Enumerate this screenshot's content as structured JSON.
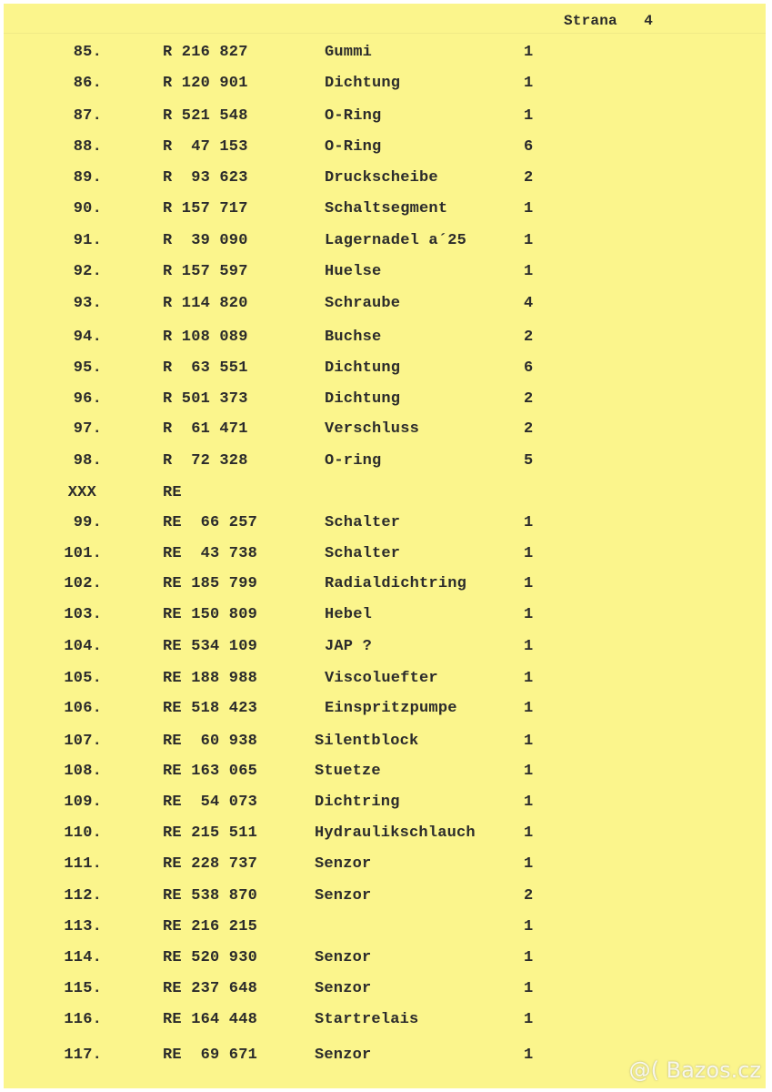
{
  "header": {
    "page_label": "Strana",
    "page_number": "4"
  },
  "rows": [
    {
      "no": "85.",
      "code": "R 216 827",
      "desc": "Gummi",
      "qty": "1"
    },
    {
      "no": "86.",
      "code": "R 120 901",
      "desc": "Dichtung",
      "qty": "1"
    },
    {
      "no": "87.",
      "code": "R 521 548",
      "desc": "O-Ring",
      "qty": "1"
    },
    {
      "no": "88.",
      "code": "R  47 153",
      "desc": "O-Ring",
      "qty": "6"
    },
    {
      "no": "89.",
      "code": "R  93 623",
      "desc": "Druckscheibe",
      "qty": "2"
    },
    {
      "no": "90.",
      "code": "R 157 717",
      "desc": "Schaltsegment",
      "qty": "1"
    },
    {
      "no": "91.",
      "code": "R  39 090",
      "desc": "Lagernadel a´25",
      "qty": "1"
    },
    {
      "no": "92.",
      "code": "R 157 597",
      "desc": "Huelse",
      "qty": "1"
    },
    {
      "no": "93.",
      "code": "R 114 820",
      "desc": "Schraube",
      "qty": "4"
    },
    {
      "no": "94.",
      "code": "R 108 089",
      "desc": "Buchse",
      "qty": "2"
    },
    {
      "no": "95.",
      "code": "R  63 551",
      "desc": "Dichtung",
      "qty": "6"
    },
    {
      "no": "96.",
      "code": "R 501 373",
      "desc": "Dichtung",
      "qty": "2"
    },
    {
      "no": "97.",
      "code": "R  61 471",
      "desc": "Verschluss",
      "qty": "2"
    },
    {
      "no": "98.",
      "code": "R  72 328",
      "desc": "O-ring",
      "qty": "5"
    },
    {
      "no": "XXX",
      "code": "RE",
      "desc": "",
      "qty": ""
    },
    {
      "no": "99.",
      "code": "RE  66 257",
      "desc": "Schalter",
      "qty": "1"
    },
    {
      "no": "101.",
      "code": "RE  43 738",
      "desc": "Schalter",
      "qty": "1"
    },
    {
      "no": "102.",
      "code": "RE 185 799",
      "desc": "Radialdichtring",
      "qty": "1"
    },
    {
      "no": "103.",
      "code": "RE 150 809",
      "desc": "Hebel",
      "qty": "1"
    },
    {
      "no": "104.",
      "code": "RE 534 109",
      "desc": "JAP ?",
      "qty": "1"
    },
    {
      "no": "105.",
      "code": "RE 188 988",
      "desc": "Viscoluefter",
      "qty": "1"
    },
    {
      "no": "106.",
      "code": "RE 518 423",
      "desc": "Einspritzpumpe",
      "qty": "1"
    },
    {
      "no": "107.",
      "code": "RE  60 938",
      "desc": "Silentblock",
      "qty": "1"
    },
    {
      "no": "108.",
      "code": "RE 163 065",
      "desc": "Stuetze",
      "qty": "1"
    },
    {
      "no": "109.",
      "code": "RE  54 073",
      "desc": "Dichtring",
      "qty": "1"
    },
    {
      "no": "110.",
      "code": "RE 215 511",
      "desc": "Hydraulikschlauch",
      "qty": "1"
    },
    {
      "no": "111.",
      "code": "RE 228 737",
      "desc": "Senzor",
      "qty": "1"
    },
    {
      "no": "112.",
      "code": "RE 538 870",
      "desc": "Senzor",
      "qty": "2"
    },
    {
      "no": "113.",
      "code": "RE 216 215",
      "desc": "",
      "qty": "1"
    },
    {
      "no": "114.",
      "code": "RE 520 930",
      "desc": "Senzor",
      "qty": "1"
    },
    {
      "no": "115.",
      "code": "RE 237 648",
      "desc": "Senzor",
      "qty": "1"
    },
    {
      "no": "116.",
      "code": "RE 164 448",
      "desc": "Startrelais",
      "qty": "1"
    },
    {
      "no": "117.",
      "code": "RE  69 671",
      "desc": "Senzor",
      "qty": "1"
    }
  ],
  "watermark": "@( Bazos.cz"
}
